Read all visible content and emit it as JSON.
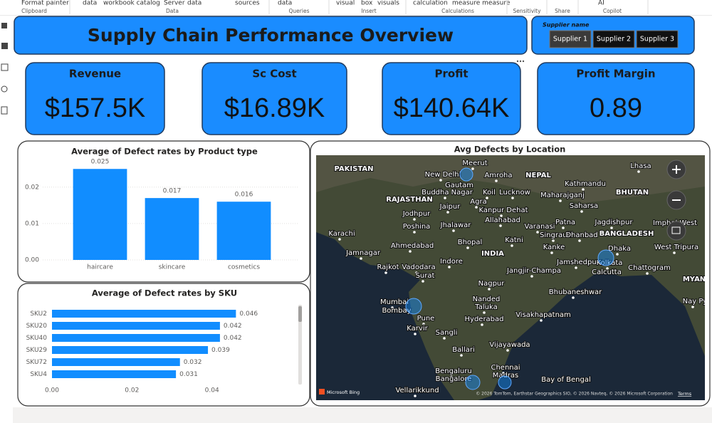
{
  "ribbon": {
    "items": [
      "Format painter",
      "data",
      "workbook catalog",
      "Server",
      "data",
      "sources",
      "data",
      "visual",
      "box",
      "visuals",
      "calculation",
      "measure measure",
      "AI"
    ],
    "groups": [
      "Clipboard",
      "Data",
      "Queries",
      "Insert",
      "Calculations",
      "Sensitivity",
      "Share",
      "Copilot"
    ]
  },
  "header": {
    "title": "Supply Chain Performance Overview"
  },
  "slicer": {
    "title": "Supplier name",
    "options": [
      "Supplier 1",
      "Supplier 2",
      "Supplier 3"
    ]
  },
  "kpis": [
    {
      "label": "Revenue",
      "value": "$157.5K"
    },
    {
      "label": "Sc Cost",
      "value": "$16.89K"
    },
    {
      "label": "Profit",
      "value": "$140.64K"
    },
    {
      "label": "Profit Margin",
      "value": "0.89"
    }
  ],
  "chart_data": [
    {
      "type": "bar",
      "title": "Average of Defect rates by Product type",
      "categories": [
        "haircare",
        "skincare",
        "cosmetics"
      ],
      "values": [
        0.025,
        0.017,
        0.016
      ],
      "color": "#118dff",
      "ylim": [
        0,
        0.027
      ],
      "yticks": [
        {
          "value": 0,
          "label": "0.00"
        },
        {
          "value": 0.01,
          "label": "0.01"
        },
        {
          "value": 0.02,
          "label": "0.02"
        }
      ],
      "grid": true
    },
    {
      "type": "hbar",
      "title": "Average of Defect rates by SKU",
      "categories": [
        "SKU2",
        "SKU20",
        "SKU40",
        "SKU29",
        "SKU72",
        "SKU4"
      ],
      "values": [
        0.046,
        0.042,
        0.042,
        0.039,
        0.032,
        0.031
      ],
      "color": "#118dff",
      "xlim": [
        0,
        0.06
      ],
      "xticks": [
        {
          "value": 0,
          "label": "0.00"
        },
        {
          "value": 0.02,
          "label": "0.02"
        },
        {
          "value": 0.04,
          "label": "0.04"
        }
      ]
    }
  ],
  "map": {
    "title": "Avg Defects by Location",
    "labels": [
      "PAKISTAN",
      "New Delhi",
      "Meerut",
      "Amroha",
      "NEPAL",
      "Kathmandu",
      "Lhasa",
      "Gautam",
      "Buddha Nagar",
      "Koil",
      "Lucknow",
      "Maharajganj",
      "BHUTAN",
      "RAJASTHAN",
      "Agra",
      "Kanpur Dehat",
      "Saharsa",
      "Jodhpur",
      "Jaipur",
      "Allahabad",
      "Varanasi",
      "Patna",
      "Jagdishpur",
      "Imphal West",
      "Karachi",
      "Poshina",
      "Jhalawar",
      "Singrauli",
      "Dhanbad",
      "BANGLADESH",
      "Katni",
      "Jamnagar",
      "Ahmedabad",
      "Bhopal",
      "INDIA",
      "Kanke",
      "Dhaka",
      "West Tripura",
      "Rajkot",
      "Vadodara",
      "Indore",
      "Jamshedpur",
      "Kolkata",
      "Calcutta",
      "Chattogram",
      "MYAN",
      "Surat",
      "Jangjir-Champa",
      "Nagpur",
      "Bhubaneshwar",
      "Mumbai",
      "Bombay",
      "Nanded",
      "Taluka",
      "Nay Py",
      "Hyderabad",
      "Visakhapatnam",
      "Pune",
      "Karvir",
      "Sangli",
      "Vijayawada",
      "Ballari",
      "Bengaluru",
      "Bangalore",
      "Chennai",
      "Madras",
      "Vellarikkund",
      "Bay of Bengal"
    ],
    "brand": "Microsoft Bing",
    "attribution": "© 2026 TomTom, Earthstar Geographics SIO, © 2026 Navteq, © 2026 Microsoft Corporation",
    "terms": "Terms"
  }
}
